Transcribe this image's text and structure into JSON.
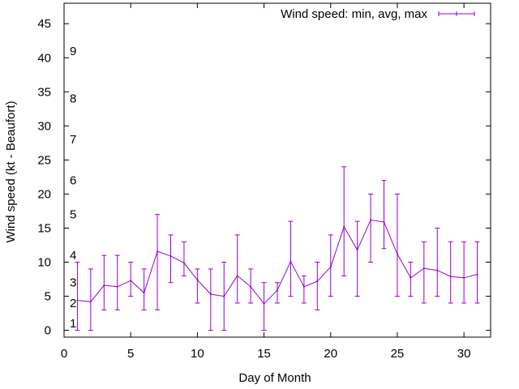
{
  "chart_data": {
    "type": "line",
    "xlabel": "Day of Month",
    "ylabel": "Wind speed (kt - Beaufort)",
    "xlim": [
      0,
      32
    ],
    "ylim": [
      -1,
      48
    ],
    "xticks": [
      0,
      5,
      10,
      15,
      20,
      25,
      30
    ],
    "yticks": [
      0,
      5,
      10,
      15,
      20,
      25,
      30,
      35,
      40,
      45
    ],
    "grid": false,
    "legend_position": "top-right",
    "series": [
      {
        "name": "Wind speed: min, avg, max",
        "color": "#9400d3",
        "x": [
          1,
          2,
          3,
          4,
          5,
          6,
          7,
          8,
          9,
          10,
          11,
          12,
          13,
          14,
          15,
          16,
          17,
          18,
          19,
          20,
          21,
          22,
          23,
          24,
          25,
          26,
          27,
          28,
          29,
          30,
          31
        ],
        "avg": [
          4.4,
          4.2,
          6.6,
          6.4,
          7.3,
          5.5,
          11.6,
          10.9,
          9.9,
          7.4,
          5.3,
          5.0,
          8.0,
          6.4,
          3.9,
          5.9,
          10.1,
          6.4,
          7.2,
          9.3,
          15.2,
          11.8,
          16.2,
          15.9,
          11.2,
          7.7,
          9.1,
          8.8,
          7.9,
          7.7,
          8.2
        ],
        "min": [
          0,
          0,
          3,
          3,
          5,
          3,
          3,
          7,
          8,
          4,
          0,
          0,
          4,
          4,
          0,
          4,
          5,
          4,
          3,
          5,
          8,
          5,
          10,
          12,
          5,
          5,
          4,
          5,
          4,
          4,
          4
        ],
        "max": [
          10,
          9,
          11,
          11,
          10,
          9,
          17,
          14,
          13,
          9,
          9,
          10,
          14,
          9,
          7,
          7,
          16,
          8,
          10,
          14,
          24,
          16,
          20,
          22,
          20,
          10,
          13,
          15,
          13,
          13,
          13
        ]
      }
    ],
    "annotations": [
      {
        "text": "1",
        "y": 1
      },
      {
        "text": "2",
        "y": 4
      },
      {
        "text": "3",
        "y": 7
      },
      {
        "text": "4",
        "y": 11
      },
      {
        "text": "5",
        "y": 17
      },
      {
        "text": "6",
        "y": 22
      },
      {
        "text": "7",
        "y": 28
      },
      {
        "text": "8",
        "y": 34
      },
      {
        "text": "9",
        "y": 41
      }
    ]
  }
}
